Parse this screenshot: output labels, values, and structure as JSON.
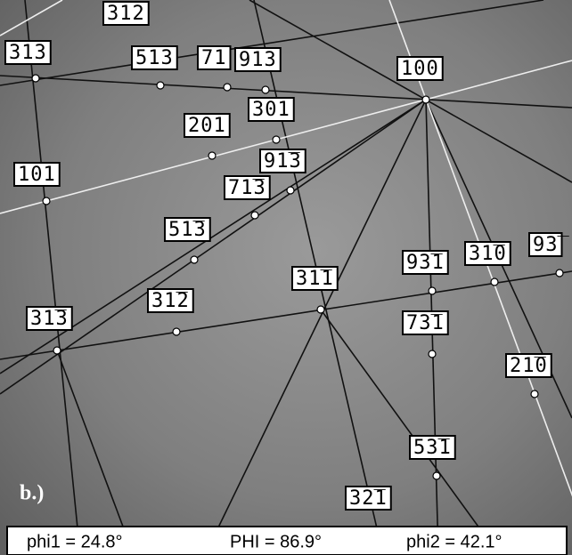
{
  "pattern": {
    "labels": [
      "312",
      "313",
      "513",
      "71",
      "913",
      "100",
      "301",
      "201",
      "101",
      "91̅3",
      "71̅3",
      "51̅3",
      "93̅1",
      "31̅0",
      "93̅",
      "31̅1",
      "31̅2",
      "31̅3",
      "73̅1",
      "21̅0",
      "53̅1",
      "32̅1"
    ],
    "panel_label": "b.)",
    "angles": [
      "phi1 = 24.8°",
      "PHI = 86.9°",
      "phi2 = 42.1°"
    ]
  }
}
